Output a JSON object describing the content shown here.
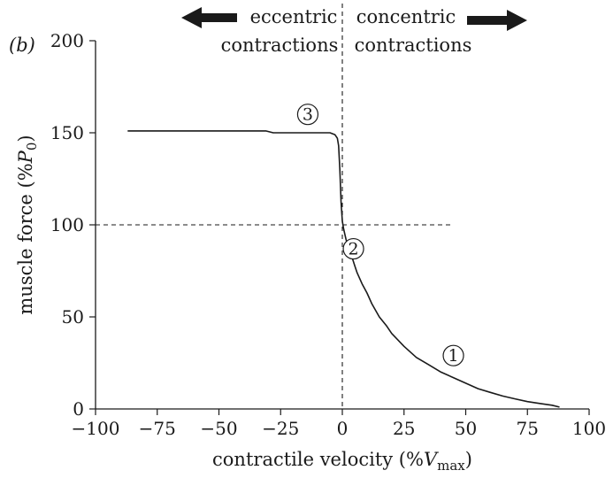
{
  "chart_data": {
    "type": "line",
    "panel_label": "(b)",
    "xlabel": {
      "prefix": "contractile velocity (%",
      "var": "V",
      "sub": "max",
      "suffix": ")"
    },
    "ylabel": {
      "prefix": "muscle force (%",
      "var": "P",
      "sub": "0",
      "suffix": ")"
    },
    "xlim": [
      -100,
      100
    ],
    "ylim": [
      0,
      200
    ],
    "x_ticks": [
      -100,
      -75,
      -50,
      -25,
      0,
      25,
      50,
      75,
      100
    ],
    "x_tick_labels": [
      "−100",
      "−75",
      "−50",
      "−25",
      "0",
      "25",
      "50",
      "75",
      "100"
    ],
    "y_ticks": [
      0,
      50,
      100,
      150,
      200
    ],
    "y_tick_labels": [
      "0",
      "50",
      "100",
      "150",
      "200"
    ],
    "grid": false,
    "series": [
      {
        "x": [
          -87,
          -40,
          -31,
          -28,
          -20,
          -10,
          -5,
          -3,
          -2,
          -1.5,
          -1,
          -0.5,
          0,
          0.5,
          1,
          1.5,
          2,
          3,
          4,
          5,
          6,
          7,
          8,
          10,
          12,
          15,
          18,
          20,
          25,
          30,
          35,
          40,
          45,
          50,
          55,
          60,
          65,
          70,
          75,
          80,
          85,
          88
        ],
        "y": [
          151,
          151,
          151,
          150,
          150,
          150,
          150,
          149,
          147,
          143,
          130,
          112,
          102,
          98,
          95,
          92,
          90,
          86,
          82,
          78,
          74,
          71,
          68,
          63,
          57,
          50,
          45,
          41,
          34,
          28,
          24,
          20,
          17,
          14,
          11,
          9,
          7,
          5.5,
          4,
          3,
          2,
          1
        ]
      }
    ],
    "reference_lines": [
      {
        "orientation": "horizontal",
        "value": 100,
        "from": -100,
        "to": 45,
        "style": "dashed"
      },
      {
        "orientation": "vertical",
        "value": 0,
        "style": "dashed"
      }
    ],
    "region_labels": [
      {
        "lines": [
          "eccentric",
          "contractions"
        ],
        "arrow": "left"
      },
      {
        "lines": [
          "concentric",
          "contractions"
        ],
        "arrow": "right"
      }
    ],
    "markers": [
      {
        "label": "3",
        "x": -14,
        "y": 160
      },
      {
        "label": "2",
        "x": 4.5,
        "y": 87
      },
      {
        "label": "1",
        "x": 45,
        "y": 29
      }
    ]
  }
}
